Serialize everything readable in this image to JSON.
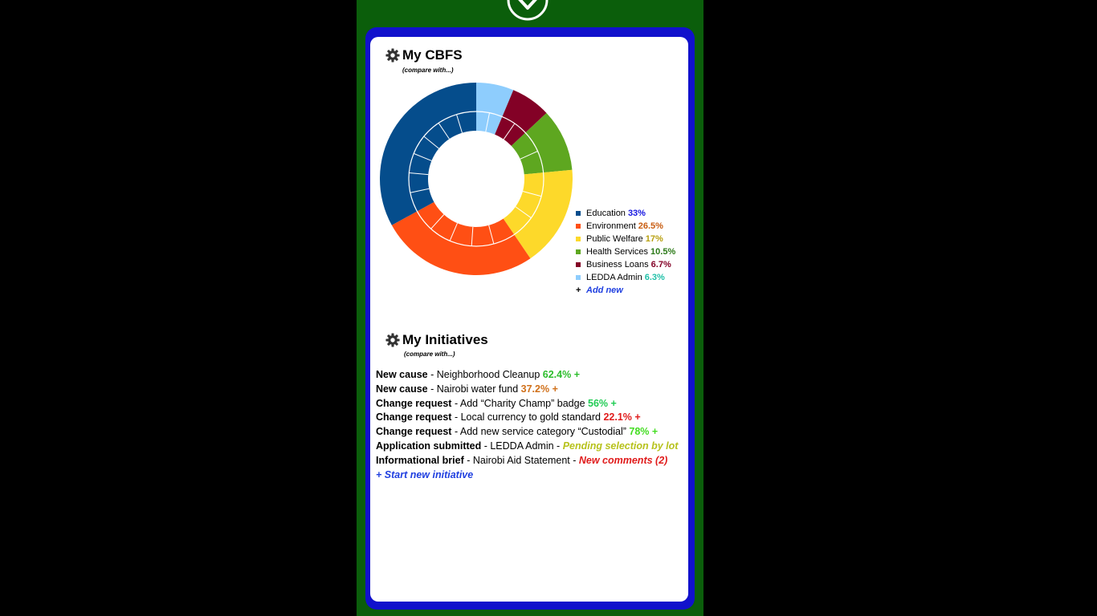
{
  "cbfs": {
    "title": "My CBFS",
    "compare_label": "(compare with...)",
    "add_new_label": "Add new",
    "categories": [
      {
        "name": "Education",
        "percent": "33%",
        "value": 33,
        "color": "#054d8c",
        "pct_color": "#1515e0"
      },
      {
        "name": "Environment",
        "percent": "26.5%",
        "value": 26.5,
        "color": "#ff4f14",
        "pct_color": "#c85c10"
      },
      {
        "name": "Public Welfare",
        "percent": "17%",
        "value": 17,
        "color": "#fdd92a",
        "pct_color": "#b8a010"
      },
      {
        "name": "Health Services",
        "percent": "10.5%",
        "value": 10.5,
        "color": "#5ea720",
        "pct_color": "#2c7a18"
      },
      {
        "name": "Business Loans",
        "percent": "6.7%",
        "value": 6.7,
        "color": "#830126",
        "pct_color": "#830126"
      },
      {
        "name": "LEDDA Admin",
        "percent": "6.3%",
        "value": 6.3,
        "color": "#8ecdfd",
        "pct_color": "#20c0a8"
      }
    ]
  },
  "initiatives": {
    "title": "My Initiatives",
    "compare_label": "(compare with...)",
    "start_new_label": "+ Start new initiative",
    "items": [
      {
        "type": "New cause",
        "sep": " - ",
        "detail": "Neighborhood Cleanup",
        "status": "62.4% +",
        "status_color": "#2dbd2d",
        "italic": false
      },
      {
        "type": "New cause",
        "sep": " - ",
        "detail": "Nairobi water fund",
        "status": "37.2% +",
        "status_color": "#d0701a",
        "italic": false
      },
      {
        "type": "Change request",
        "sep": " - ",
        "detail": "Add “Charity Champ” badge",
        "status": "56% +",
        "status_color": "#22cc55",
        "italic": false
      },
      {
        "type": "Change request",
        "sep": " - ",
        "detail": "Local currency to gold standard",
        "status": "22.1% +",
        "status_color": "#e01b1b",
        "italic": false
      },
      {
        "type": "Change request",
        "sep": " - ",
        "detail": "Add new service category “Custodial”",
        "status": "78% +",
        "status_color": "#44dd22",
        "italic": false
      },
      {
        "type": "Application submitted",
        "sep": " - ",
        "detail": "LEDDA Admin - ",
        "status": "Pending selection by lot",
        "status_color": "#b7c21c",
        "italic": true
      },
      {
        "type": "Informational brief",
        "sep": " - ",
        "detail": "Nairobi Aid Statement - ",
        "status": "New comments (2)",
        "status_color": "#e01b1b",
        "italic": true
      }
    ]
  }
}
